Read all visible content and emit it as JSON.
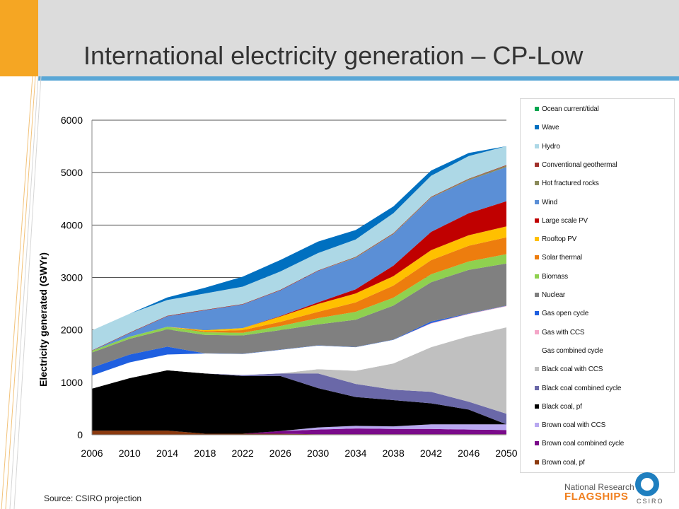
{
  "slide": {
    "title": "International electricity generation – CP-Low",
    "source": "Source: CSIRO projection"
  },
  "logo": {
    "line1": "National Research",
    "line2": "FLAGSHIPS",
    "org": "CSIRO"
  },
  "theme": {
    "accent_orange": "#f5a623",
    "accent_blue": "#5aa7d6",
    "header_grey": "#dcdcdc"
  },
  "chart_data": {
    "type": "area",
    "stacked": true,
    "title": "",
    "xlabel": "",
    "ylabel": "Electricity generated (GWYr)",
    "xlim": [
      2006,
      2050
    ],
    "ylim": [
      0,
      6000
    ],
    "xticks": [
      "2006",
      "2010",
      "2014",
      "2018",
      "2022",
      "2026",
      "2030",
      "2034",
      "2038",
      "2042",
      "2046",
      "2050"
    ],
    "yticks": [
      "0",
      "1000",
      "2000",
      "3000",
      "4000",
      "5000",
      "6000"
    ],
    "grid": "horizontal",
    "legend_position": "right",
    "x": [
      2006,
      2010,
      2014,
      2018,
      2022,
      2026,
      2030,
      2034,
      2038,
      2042,
      2046,
      2050
    ],
    "series": [
      {
        "name": "Brown coal, pf",
        "color": "#8b3a0f",
        "values": [
          80,
          80,
          80,
          20,
          20,
          20,
          10,
          10,
          10,
          10,
          10,
          10
        ]
      },
      {
        "name": "Brown coal combined cycle",
        "color": "#7a0a8a",
        "values": [
          0,
          0,
          0,
          0,
          0,
          50,
          90,
          110,
          100,
          100,
          90,
          80
        ]
      },
      {
        "name": "Brown coal with CCS",
        "color": "#b8a8f0",
        "values": [
          0,
          0,
          0,
          0,
          0,
          0,
          40,
          50,
          50,
          90,
          100,
          110
        ]
      },
      {
        "name": "Black coal, pf",
        "color": "#000000",
        "values": [
          800,
          1000,
          1150,
          1150,
          1100,
          1050,
          750,
          550,
          500,
          400,
          280,
          0
        ]
      },
      {
        "name": "Black coal combined cycle",
        "color": "#6a68a8",
        "values": [
          0,
          0,
          0,
          0,
          20,
          50,
          280,
          250,
          200,
          220,
          150,
          200
        ]
      },
      {
        "name": "Black coal with CCS",
        "color": "#c0c0c0",
        "values": [
          0,
          0,
          0,
          0,
          0,
          0,
          80,
          250,
          500,
          850,
          1250,
          1650
        ]
      },
      {
        "name": "Gas combined cycle",
        "color": "#ffffff",
        "values": [
          250,
          300,
          300,
          380,
          400,
          450,
          450,
          450,
          450,
          450,
          420,
          400
        ]
      },
      {
        "name": "Gas with CCS",
        "color": "#f4a6c8",
        "values": [
          0,
          0,
          0,
          0,
          0,
          0,
          0,
          0,
          0,
          10,
          10,
          10
        ]
      },
      {
        "name": "Gas open cycle",
        "color": "#1f5fe0",
        "values": [
          150,
          150,
          150,
          5,
          5,
          5,
          5,
          5,
          5,
          30,
          5,
          5
        ]
      },
      {
        "name": "Nuclear",
        "color": "#808080",
        "values": [
          290,
          300,
          330,
          350,
          350,
          370,
          400,
          520,
          650,
          750,
          830,
          800
        ]
      },
      {
        "name": "Biomass",
        "color": "#8fd14f",
        "values": [
          30,
          40,
          50,
          50,
          50,
          80,
          120,
          150,
          150,
          150,
          160,
          180
        ]
      },
      {
        "name": "Solar thermal",
        "color": "#ed7d0e",
        "values": [
          0,
          0,
          0,
          20,
          50,
          80,
          120,
          180,
          230,
          270,
          300,
          320
        ]
      },
      {
        "name": "Rooftop PV",
        "color": "#ffc000",
        "values": [
          0,
          0,
          0,
          20,
          40,
          100,
          150,
          170,
          180,
          190,
          200,
          210
        ]
      },
      {
        "name": "Large scale PV",
        "color": "#c00000",
        "values": [
          0,
          0,
          0,
          0,
          0,
          10,
          30,
          80,
          200,
          350,
          420,
          480
        ]
      },
      {
        "name": "Wind",
        "color": "#5b8fd6",
        "values": [
          0,
          70,
          200,
          380,
          450,
          490,
          600,
          600,
          600,
          650,
          630,
          650
        ]
      },
      {
        "name": "Hot fractured rocks",
        "color": "#8b8b5a",
        "values": [
          0,
          0,
          0,
          0,
          0,
          0,
          0,
          10,
          10,
          10,
          20,
          30
        ]
      },
      {
        "name": "Conventional geothermal",
        "color": "#a0302a",
        "values": [
          10,
          10,
          10,
          10,
          10,
          10,
          10,
          10,
          10,
          10,
          10,
          10
        ]
      },
      {
        "name": "Hydro",
        "color": "#add8e6",
        "values": [
          380,
          360,
          300,
          310,
          330,
          350,
          330,
          330,
          380,
          400,
          430,
          360
        ]
      },
      {
        "name": "Wave",
        "color": "#0070c0",
        "values": [
          0,
          0,
          50,
          110,
          190,
          220,
          220,
          180,
          130,
          100,
          60,
          0
        ]
      },
      {
        "name": "Ocean current/tidal",
        "color": "#00a650",
        "values": [
          0,
          0,
          0,
          0,
          0,
          0,
          0,
          0,
          0,
          0,
          0,
          0
        ]
      }
    ]
  }
}
